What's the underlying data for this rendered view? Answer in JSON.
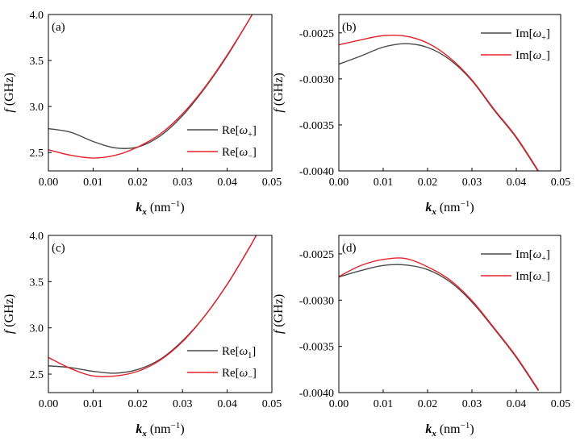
{
  "chart_data": [
    {
      "id": "a",
      "type": "line",
      "panel_label": "(a)",
      "xlabel": {
        "symbol": "k",
        "sub": "x",
        "unit_pre": " (nm",
        "sup": "−1",
        "unit_post": ")"
      },
      "ylabel": {
        "symbol": "f",
        "unit": " (GHz)"
      },
      "xlim": [
        0,
        0.05
      ],
      "ylim": [
        2.3,
        4.0
      ],
      "xticks": [
        0,
        0.01,
        0.02,
        0.03,
        0.04,
        0.05
      ],
      "xtick_labels": [
        "0.00",
        "0.01",
        "0.02",
        "0.03",
        "0.04",
        "0.05"
      ],
      "yticks": [
        2.5,
        3.0,
        3.5,
        4.0
      ],
      "ytick_labels": [
        "2.5",
        "3.0",
        "3.5",
        "4.0"
      ],
      "legend_position": "right-middle",
      "series": [
        {
          "name": "Re[ω+]",
          "legend": {
            "pre": "Re[",
            "sym": "ω",
            "sub": "+",
            "post": "]"
          },
          "color": "#4a4a4a",
          "x": [
            0,
            0.005,
            0.01,
            0.015,
            0.02,
            0.025,
            0.03,
            0.035,
            0.04,
            0.045,
            0.0455
          ],
          "y": [
            2.76,
            2.72,
            2.62,
            2.55,
            2.56,
            2.68,
            2.9,
            3.2,
            3.55,
            3.95,
            4.0
          ]
        },
        {
          "name": "Re[ω−]",
          "legend": {
            "pre": "Re[",
            "sym": "ω",
            "sub": "−",
            "post": "]"
          },
          "color": "#e8202a",
          "x": [
            0,
            0.005,
            0.01,
            0.015,
            0.02,
            0.025,
            0.03,
            0.035,
            0.04,
            0.045,
            0.0455
          ],
          "y": [
            2.53,
            2.47,
            2.44,
            2.47,
            2.56,
            2.7,
            2.92,
            3.21,
            3.56,
            3.95,
            4.0
          ]
        }
      ]
    },
    {
      "id": "b",
      "type": "line",
      "panel_label": "(b)",
      "xlabel": {
        "symbol": "k",
        "sub": "x",
        "unit_pre": " (nm",
        "sup": "−1",
        "unit_post": ")"
      },
      "ylabel": {
        "symbol": "f",
        "unit": " (GHz)"
      },
      "xlim": [
        0,
        0.05
      ],
      "ylim": [
        -0.004,
        -0.0023
      ],
      "xticks": [
        0,
        0.01,
        0.02,
        0.03,
        0.04,
        0.05
      ],
      "xtick_labels": [
        "0.00",
        "0.01",
        "0.02",
        "0.03",
        "0.04",
        "0.05"
      ],
      "yticks": [
        -0.0025,
        -0.003,
        -0.0035,
        -0.004
      ],
      "ytick_labels": [
        "-0.0025",
        "-0.0030",
        "-0.0035",
        "-0.0040"
      ],
      "legend_position": "top-right",
      "series": [
        {
          "name": "Im[ω+]",
          "legend": {
            "pre": "Im[",
            "sym": "ω",
            "sub": "+",
            "post": "]"
          },
          "color": "#4a4a4a",
          "x": [
            0,
            0.005,
            0.01,
            0.015,
            0.02,
            0.025,
            0.03,
            0.035,
            0.04,
            0.045
          ],
          "y": [
            -0.00284,
            -0.00275,
            -0.002655,
            -0.002617,
            -0.002658,
            -0.00279,
            -0.00302,
            -0.00334,
            -0.00364,
            -0.00401
          ]
        },
        {
          "name": "Im[ω−]",
          "legend": {
            "pre": "Im[",
            "sym": "ω",
            "sub": "−",
            "post": "]"
          },
          "color": "#e8202a",
          "x": [
            0,
            0.005,
            0.01,
            0.015,
            0.02,
            0.025,
            0.03,
            0.035,
            0.04,
            0.045
          ],
          "y": [
            -0.00263,
            -0.002575,
            -0.00253,
            -0.002535,
            -0.00261,
            -0.00277,
            -0.00301,
            -0.00333,
            -0.00363,
            -0.004
          ]
        }
      ]
    },
    {
      "id": "c",
      "type": "line",
      "panel_label": "(c)",
      "xlabel": {
        "symbol": "k",
        "sub": "x",
        "unit_pre": " (nm",
        "sup": "−1",
        "unit_post": ")"
      },
      "ylabel": {
        "symbol": "f",
        "unit": " (GHz)"
      },
      "xlim": [
        0,
        0.05
      ],
      "ylim": [
        2.3,
        4.0
      ],
      "xticks": [
        0,
        0.01,
        0.02,
        0.03,
        0.04,
        0.05
      ],
      "xtick_labels": [
        "0.00",
        "0.01",
        "0.02",
        "0.03",
        "0.04",
        "0.05"
      ],
      "yticks": [
        2.5,
        3.0,
        3.5,
        4.0
      ],
      "ytick_labels": [
        "2.5",
        "3.0",
        "3.5",
        "4.0"
      ],
      "legend_position": "right-middle",
      "series": [
        {
          "name": "Re[ω1]",
          "legend": {
            "pre": "Re[",
            "sym": "ω",
            "sub": "1",
            "post": "]"
          },
          "color": "#4a4a4a",
          "x": [
            0,
            0.005,
            0.01,
            0.015,
            0.02,
            0.025,
            0.03,
            0.035,
            0.04,
            0.045,
            0.0465
          ],
          "y": [
            2.59,
            2.57,
            2.53,
            2.51,
            2.55,
            2.66,
            2.86,
            3.13,
            3.47,
            3.87,
            4.0
          ]
        },
        {
          "name": "Re[ω−]",
          "legend": {
            "pre": "Re[",
            "sym": "ω",
            "sub": "−",
            "post": "]"
          },
          "color": "#e8202a",
          "x": [
            0,
            0.005,
            0.01,
            0.015,
            0.02,
            0.025,
            0.03,
            0.035,
            0.04,
            0.045,
            0.0465
          ],
          "y": [
            2.68,
            2.56,
            2.48,
            2.48,
            2.53,
            2.65,
            2.85,
            3.13,
            3.47,
            3.87,
            4.0
          ]
        }
      ]
    },
    {
      "id": "d",
      "type": "line",
      "panel_label": "(d)",
      "xlabel": {
        "symbol": "k",
        "sub": "x",
        "unit_pre": " (nm",
        "sup": "−1",
        "unit_post": ")"
      },
      "ylabel": {
        "symbol": "f",
        "unit": " (GHz)"
      },
      "xlim": [
        0,
        0.05
      ],
      "ylim": [
        -0.004,
        -0.0023
      ],
      "xticks": [
        0,
        0.01,
        0.02,
        0.03,
        0.04,
        0.05
      ],
      "xtick_labels": [
        "0.00",
        "0.01",
        "0.02",
        "0.03",
        "0.04",
        "0.05"
      ],
      "yticks": [
        -0.0025,
        -0.003,
        -0.0035,
        -0.004
      ],
      "ytick_labels": [
        "-0.0025",
        "-0.0030",
        "-0.0035",
        "-0.0040"
      ],
      "legend_position": "top-right",
      "series": [
        {
          "name": "Im[ω+]",
          "legend": {
            "pre": "Im[",
            "sym": "ω",
            "sub": "+",
            "post": "]"
          },
          "color": "#4a4a4a",
          "x": [
            0,
            0.005,
            0.01,
            0.015,
            0.02,
            0.025,
            0.03,
            0.035,
            0.04,
            0.045
          ],
          "y": [
            -0.00275,
            -0.00268,
            -0.002625,
            -0.00262,
            -0.00267,
            -0.0028,
            -0.00302,
            -0.00331,
            -0.00362,
            -0.00398
          ]
        },
        {
          "name": "Im[ω−]",
          "legend": {
            "pre": "Im[",
            "sym": "ω",
            "sub": "−",
            "post": "]"
          },
          "color": "#e8202a",
          "x": [
            0,
            0.005,
            0.01,
            0.015,
            0.02,
            0.025,
            0.03,
            0.035,
            0.04,
            0.045
          ],
          "y": [
            -0.002745,
            -0.002625,
            -0.00256,
            -0.00255,
            -0.00264,
            -0.00278,
            -0.003005,
            -0.0033,
            -0.00361,
            -0.00397
          ]
        }
      ]
    }
  ]
}
